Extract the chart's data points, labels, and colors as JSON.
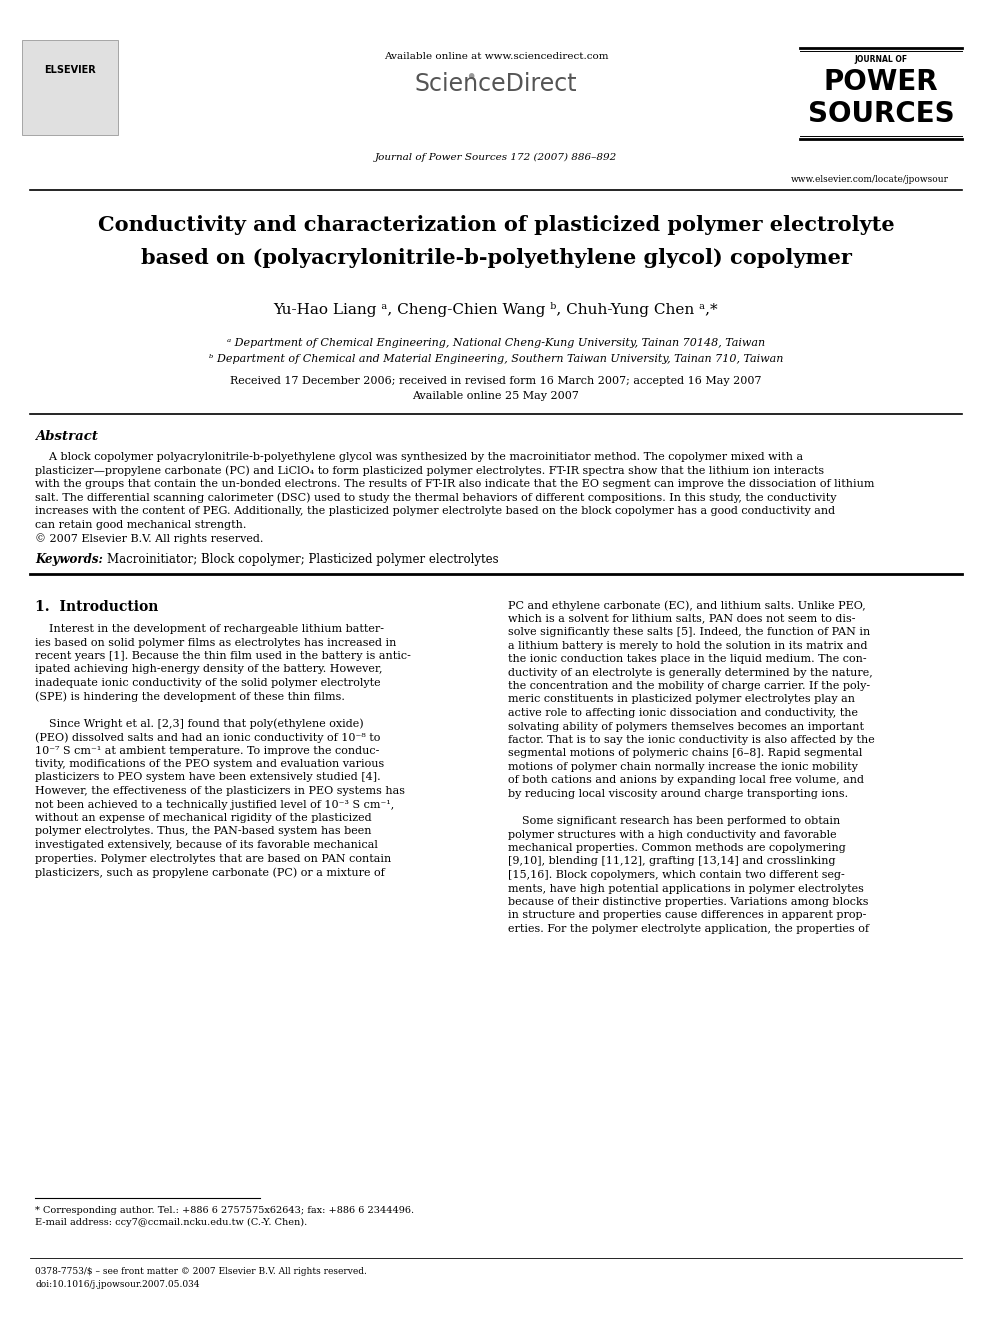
{
  "bg_color": "#ffffff",
  "page_width": 9.92,
  "page_height": 13.23,
  "header_available_text": "Available online at www.sciencedirect.com",
  "header_sciencedirect": "ScienceDirect",
  "header_journal_line1": "Journal of Power Sources 172 (2007) 886–892",
  "header_journal_name1": "JOURNAL OF",
  "header_journal_name2": "POWER",
  "header_journal_name3": "SOURCES",
  "header_elsevier_text": "ELSEVIER",
  "header_url": "www.elsevier.com/locate/jpowsour",
  "title_line1": "Conductivity and characterization of plasticized polymer electrolyte",
  "title_line2": "based on (polyacrylonitrile-b-polyethylene glycol) copolymer",
  "authors": "Yu-Hao Liang ᵃ, Cheng-Chien Wang ᵇ, Chuh-Yung Chen ᵃ,*",
  "affil_a": "ᵃ Department of Chemical Engineering, National Cheng-Kung University, Tainan 70148, Taiwan",
  "affil_b": "ᵇ Department of Chemical and Material Engineering, Southern Taiwan University, Tainan 710, Taiwan",
  "dates_line1": "Received 17 December 2006; received in revised form 16 March 2007; accepted 16 May 2007",
  "dates_line2": "Available online 25 May 2007",
  "abstract_title": "Abstract",
  "abstract_lines": [
    "    A block copolymer polyacrylonitrile-b-polyethylene glycol was synthesized by the macroinitiator method. The copolymer mixed with a",
    "plasticizer—propylene carbonate (PC) and LiClO₄ to form plasticized polymer electrolytes. FT-IR spectra show that the lithium ion interacts",
    "with the groups that contain the un-bonded electrons. The results of FT-IR also indicate that the EO segment can improve the dissociation of lithium",
    "salt. The differential scanning calorimeter (DSC) used to study the thermal behaviors of different compositions. In this study, the conductivity",
    "increases with the content of PEG. Additionally, the plasticized polymer electrolyte based on the block copolymer has a good conductivity and",
    "can retain good mechanical strength.",
    "© 2007 Elsevier B.V. All rights reserved."
  ],
  "keywords_label": "Keywords:",
  "keywords_text": "  Macroinitiator; Block copolymer; Plasticized polymer electrolytes",
  "section1_title": "1.  Introduction",
  "col1_lines": [
    "    Interest in the development of rechargeable lithium batter-",
    "ies based on solid polymer films as electrolytes has increased in",
    "recent years [1]. Because the thin film used in the battery is antic-",
    "ipated achieving high-energy density of the battery. However,",
    "inadequate ionic conductivity of the solid polymer electrolyte",
    "(SPE) is hindering the development of these thin films.",
    "",
    "    Since Wright et al. [2,3] found that poly(ethylene oxide)",
    "(PEO) dissolved salts and had an ionic conductivity of 10⁻⁸ to",
    "10⁻⁷ S cm⁻¹ at ambient temperature. To improve the conduc-",
    "tivity, modifications of the PEO system and evaluation various",
    "plasticizers to PEO system have been extensively studied [4].",
    "However, the effectiveness of the plasticizers in PEO systems has",
    "not been achieved to a technically justified level of 10⁻³ S cm⁻¹,",
    "without an expense of mechanical rigidity of the plasticized",
    "polymer electrolytes. Thus, the PAN-based system has been",
    "investigated extensively, because of its favorable mechanical",
    "properties. Polymer electrolytes that are based on PAN contain",
    "plasticizers, such as propylene carbonate (PC) or a mixture of"
  ],
  "col2_lines": [
    "PC and ethylene carbonate (EC), and lithium salts. Unlike PEO,",
    "which is a solvent for lithium salts, PAN does not seem to dis-",
    "solve significantly these salts [5]. Indeed, the function of PAN in",
    "a lithium battery is merely to hold the solution in its matrix and",
    "the ionic conduction takes place in the liquid medium. The con-",
    "ductivity of an electrolyte is generally determined by the nature,",
    "the concentration and the mobility of charge carrier. If the poly-",
    "meric constituents in plasticized polymer electrolytes play an",
    "active role to affecting ionic dissociation and conductivity, the",
    "solvating ability of polymers themselves becomes an important",
    "factor. That is to say the ionic conductivity is also affected by the",
    "segmental motions of polymeric chains [6–8]. Rapid segmental",
    "motions of polymer chain normally increase the ionic mobility",
    "of both cations and anions by expanding local free volume, and",
    "by reducing local viscosity around charge transporting ions.",
    "",
    "    Some significant research has been performed to obtain",
    "polymer structures with a high conductivity and favorable",
    "mechanical properties. Common methods are copolymering",
    "[9,10], blending [11,12], grafting [13,14] and crosslinking",
    "[15,16]. Block copolymers, which contain two different seg-",
    "ments, have high potential applications in polymer electrolytes",
    "because of their distinctive properties. Variations among blocks",
    "in structure and properties cause differences in apparent prop-",
    "erties. For the polymer electrolyte application, the properties of"
  ],
  "footnote_line1": "* Corresponding author. Tel.: +886 6 2757575x62643; fax: +886 6 2344496.",
  "footnote_line2": "E-mail address: ccy7@ccmail.ncku.edu.tw (C.-Y. Chen).",
  "footer_line1": "0378-7753/$ – see front matter © 2007 Elsevier B.V. All rights reserved.",
  "footer_line2": "doi:10.1016/j.jpowsour.2007.05.034"
}
